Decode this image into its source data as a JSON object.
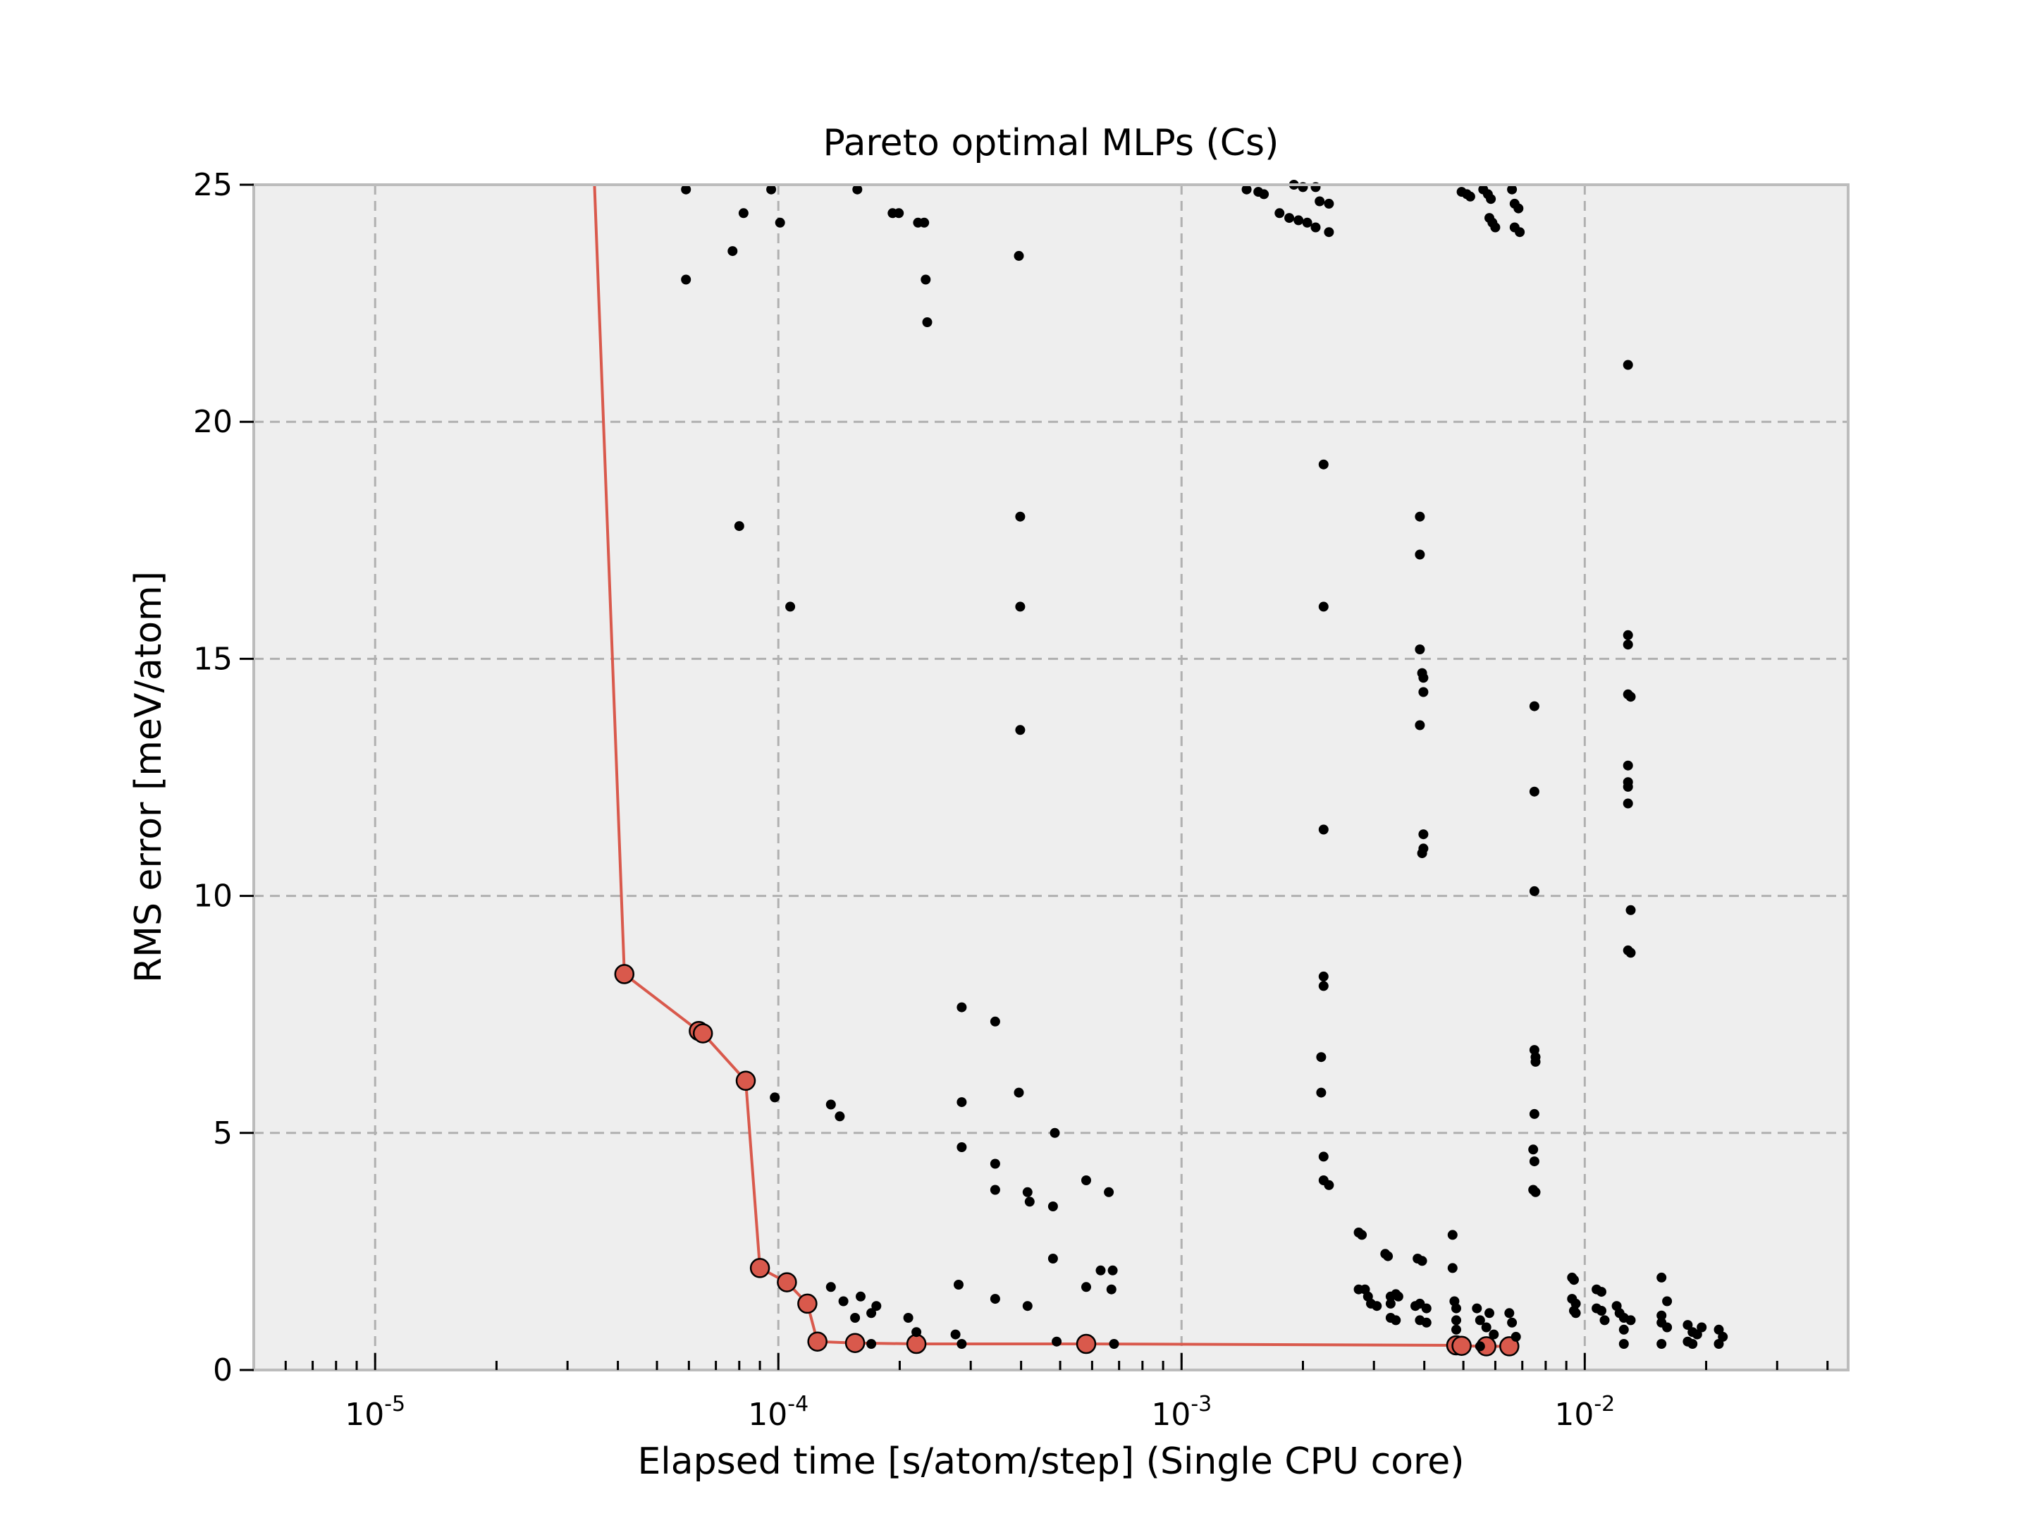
{
  "chart_data": {
    "type": "scatter",
    "title": "Pareto optimal MLPs (Cs)",
    "xlabel": "Elapsed time [s/atom/step] (Single CPU core)",
    "ylabel": "RMS error [meV/atom]",
    "xscale": "log",
    "xlim": [
      5e-06,
      0.045
    ],
    "ylim": [
      0,
      25
    ],
    "grid": true,
    "legend": "none",
    "x_ticks": [
      {
        "value": 1e-05,
        "base": "10",
        "exp": "-5"
      },
      {
        "value": 0.0001,
        "base": "10",
        "exp": "-4"
      },
      {
        "value": 0.001,
        "base": "10",
        "exp": "-3"
      },
      {
        "value": 0.01,
        "base": "10",
        "exp": "-2"
      }
    ],
    "y_ticks": [
      {
        "value": 0,
        "label": "0"
      },
      {
        "value": 5,
        "label": "5"
      },
      {
        "value": 10,
        "label": "10"
      },
      {
        "value": 15,
        "label": "15"
      },
      {
        "value": 20,
        "label": "20"
      },
      {
        "value": 25,
        "label": "25"
      }
    ],
    "colors": {
      "pareto": "#d9594c",
      "points": "#000000",
      "plot_background": "#eeeeee",
      "grid": "#b0b0b0",
      "frame": "#bcbcbc"
    },
    "series": [
      {
        "role": "all-models",
        "points": [
          [
            5.9e-05,
            24.9
          ],
          [
            5.9e-05,
            23.0
          ],
          [
            7.7e-05,
            23.6
          ],
          [
            8.2e-05,
            24.4
          ],
          [
            8e-05,
            17.8
          ],
          [
            9.6e-05,
            24.9
          ],
          [
            0.000101,
            24.2
          ],
          [
            0.000107,
            16.1
          ],
          [
            0.000157,
            24.9
          ],
          [
            0.000192,
            24.4
          ],
          [
            0.000199,
            24.4
          ],
          [
            0.000222,
            24.2
          ],
          [
            0.00023,
            24.2
          ],
          [
            0.000232,
            23.0
          ],
          [
            0.000234,
            22.1
          ],
          [
            0.000395,
            23.5
          ],
          [
            0.000398,
            18.0
          ],
          [
            0.000398,
            16.1
          ],
          [
            0.000398,
            13.5
          ],
          [
            0.00225,
            19.1
          ],
          [
            0.00225,
            16.1
          ],
          [
            0.00225,
            11.4
          ],
          [
            0.00225,
            8.3
          ],
          [
            0.00225,
            8.1
          ],
          [
            0.00222,
            6.6
          ],
          [
            0.00222,
            5.85
          ],
          [
            0.00225,
            4.5
          ],
          [
            0.00225,
            4.0
          ],
          [
            0.00232,
            3.9
          ],
          [
            0.00145,
            24.9
          ],
          [
            0.00155,
            24.85
          ],
          [
            0.0016,
            24.8
          ],
          [
            0.00175,
            24.4
          ],
          [
            0.00185,
            24.3
          ],
          [
            0.00195,
            24.25
          ],
          [
            0.00205,
            24.2
          ],
          [
            0.00215,
            24.1
          ],
          [
            0.0022,
            24.65
          ],
          [
            0.00232,
            24.6
          ],
          [
            0.00232,
            24.0
          ],
          [
            0.0019,
            25.0
          ],
          [
            0.002,
            24.95
          ],
          [
            0.00215,
            24.95
          ],
          [
            0.0039,
            18.0
          ],
          [
            0.0039,
            17.2
          ],
          [
            0.0039,
            15.2
          ],
          [
            0.00395,
            14.7
          ],
          [
            0.00398,
            14.6
          ],
          [
            0.00398,
            14.3
          ],
          [
            0.0039,
            13.6
          ],
          [
            0.00398,
            11.3
          ],
          [
            0.00398,
            11.0
          ],
          [
            0.00395,
            10.9
          ],
          [
            0.00495,
            24.85
          ],
          [
            0.0051,
            24.8
          ],
          [
            0.0052,
            24.75
          ],
          [
            0.0056,
            24.9
          ],
          [
            0.00575,
            24.8
          ],
          [
            0.00585,
            24.7
          ],
          [
            0.0058,
            24.3
          ],
          [
            0.0059,
            24.2
          ],
          [
            0.006,
            24.1
          ],
          [
            0.0066,
            24.9
          ],
          [
            0.0067,
            24.6
          ],
          [
            0.00685,
            24.5
          ],
          [
            0.0067,
            24.1
          ],
          [
            0.0069,
            24.0
          ],
          [
            0.0075,
            14.0
          ],
          [
            0.0075,
            12.2
          ],
          [
            0.0075,
            10.1
          ],
          [
            0.0075,
            6.75
          ],
          [
            0.00755,
            6.6
          ],
          [
            0.00755,
            6.5
          ],
          [
            0.0075,
            5.4
          ],
          [
            0.00745,
            4.65
          ],
          [
            0.0075,
            4.4
          ],
          [
            0.00745,
            3.8
          ],
          [
            0.00755,
            3.75
          ],
          [
            0.0128,
            21.2
          ],
          [
            0.0128,
            15.5
          ],
          [
            0.0128,
            15.3
          ],
          [
            0.0128,
            14.25
          ],
          [
            0.013,
            14.2
          ],
          [
            0.0128,
            12.75
          ],
          [
            0.0128,
            12.4
          ],
          [
            0.0128,
            12.3
          ],
          [
            0.0128,
            11.95
          ],
          [
            0.013,
            9.7
          ],
          [
            0.0128,
            8.85
          ],
          [
            0.013,
            8.8
          ],
          [
            9.8e-05,
            5.75
          ],
          [
            0.000135,
            5.6
          ],
          [
            0.000142,
            5.35
          ],
          [
            0.000285,
            7.65
          ],
          [
            0.000285,
            5.65
          ],
          [
            0.000285,
            4.7
          ],
          [
            0.000345,
            7.35
          ],
          [
            0.000345,
            4.35
          ],
          [
            0.000345,
            3.8
          ],
          [
            0.000395,
            5.85
          ],
          [
            0.000415,
            3.75
          ],
          [
            0.00042,
            3.55
          ],
          [
            0.000485,
            5.0
          ],
          [
            0.00048,
            3.45
          ],
          [
            0.00048,
            2.35
          ],
          [
            0.00058,
            4.0
          ],
          [
            0.00066,
            3.75
          ],
          [
            0.00063,
            2.1
          ],
          [
            0.000675,
            2.1
          ],
          [
            0.00058,
            1.75
          ],
          [
            0.00067,
            1.7
          ],
          [
            0.000135,
            1.75
          ],
          [
            0.000145,
            1.45
          ],
          [
            0.000155,
            1.1
          ],
          [
            0.00016,
            1.55
          ],
          [
            0.00017,
            1.2
          ],
          [
            0.000175,
            1.35
          ],
          [
            0.00017,
            0.55
          ],
          [
            0.00021,
            1.1
          ],
          [
            0.00022,
            0.8
          ],
          [
            0.00028,
            1.8
          ],
          [
            0.000275,
            0.75
          ],
          [
            0.000285,
            0.55
          ],
          [
            0.000345,
            1.5
          ],
          [
            0.000415,
            1.35
          ],
          [
            0.00049,
            0.6
          ],
          [
            0.00068,
            0.55
          ],
          [
            0.00275,
            2.9
          ],
          [
            0.0028,
            2.85
          ],
          [
            0.00275,
            1.7
          ],
          [
            0.00285,
            1.7
          ],
          [
            0.0029,
            1.55
          ],
          [
            0.00295,
            1.4
          ],
          [
            0.00305,
            1.35
          ],
          [
            0.0032,
            2.45
          ],
          [
            0.00325,
            2.4
          ],
          [
            0.0033,
            1.55
          ],
          [
            0.0033,
            1.4
          ],
          [
            0.0034,
            1.6
          ],
          [
            0.00345,
            1.55
          ],
          [
            0.0033,
            1.1
          ],
          [
            0.0034,
            1.05
          ],
          [
            0.00385,
            2.35
          ],
          [
            0.00395,
            2.3
          ],
          [
            0.0038,
            1.35
          ],
          [
            0.0039,
            1.4
          ],
          [
            0.00405,
            1.3
          ],
          [
            0.0039,
            1.05
          ],
          [
            0.00405,
            1.0
          ],
          [
            0.0047,
            2.85
          ],
          [
            0.0047,
            2.15
          ],
          [
            0.00475,
            1.45
          ],
          [
            0.0048,
            1.3
          ],
          [
            0.0048,
            1.05
          ],
          [
            0.0048,
            0.85
          ],
          [
            0.0054,
            1.3
          ],
          [
            0.0055,
            1.05
          ],
          [
            0.0057,
            0.9
          ],
          [
            0.0058,
            1.2
          ],
          [
            0.00595,
            0.75
          ],
          [
            0.0055,
            0.5
          ],
          [
            0.0065,
            1.2
          ],
          [
            0.0066,
            1.0
          ],
          [
            0.00675,
            0.7
          ],
          [
            0.0093,
            1.95
          ],
          [
            0.0094,
            1.9
          ],
          [
            0.0093,
            1.5
          ],
          [
            0.0095,
            1.4
          ],
          [
            0.0094,
            1.25
          ],
          [
            0.0095,
            1.2
          ],
          [
            0.0107,
            1.7
          ],
          [
            0.011,
            1.65
          ],
          [
            0.0107,
            1.3
          ],
          [
            0.011,
            1.25
          ],
          [
            0.0112,
            1.05
          ],
          [
            0.012,
            1.35
          ],
          [
            0.0122,
            1.2
          ],
          [
            0.0125,
            1.1
          ],
          [
            0.013,
            1.05
          ],
          [
            0.0125,
            0.85
          ],
          [
            0.0125,
            0.55
          ],
          [
            0.0155,
            1.95
          ],
          [
            0.016,
            1.45
          ],
          [
            0.0155,
            1.15
          ],
          [
            0.0155,
            1.0
          ],
          [
            0.016,
            0.9
          ],
          [
            0.0155,
            0.55
          ],
          [
            0.018,
            0.95
          ],
          [
            0.0185,
            0.8
          ],
          [
            0.018,
            0.6
          ],
          [
            0.0195,
            0.9
          ],
          [
            0.019,
            0.75
          ],
          [
            0.0185,
            0.55
          ],
          [
            0.0215,
            0.85
          ],
          [
            0.022,
            0.7
          ],
          [
            0.0215,
            0.55
          ]
        ]
      },
      {
        "role": "pareto-front",
        "points": [
          [
            3.5e-05,
            25.0
          ],
          [
            4.15e-05,
            8.35
          ],
          [
            6.35e-05,
            7.15
          ],
          [
            6.5e-05,
            7.1
          ],
          [
            8.3e-05,
            6.1
          ],
          [
            9e-05,
            2.15
          ],
          [
            0.000105,
            1.85
          ],
          [
            0.000118,
            1.4
          ],
          [
            0.000125,
            0.6
          ],
          [
            0.000155,
            0.57
          ],
          [
            0.00022,
            0.55
          ],
          [
            0.00058,
            0.55
          ],
          [
            0.0048,
            0.52
          ],
          [
            0.00495,
            0.51
          ],
          [
            0.0057,
            0.5
          ],
          [
            0.0065,
            0.5
          ]
        ]
      }
    ]
  }
}
